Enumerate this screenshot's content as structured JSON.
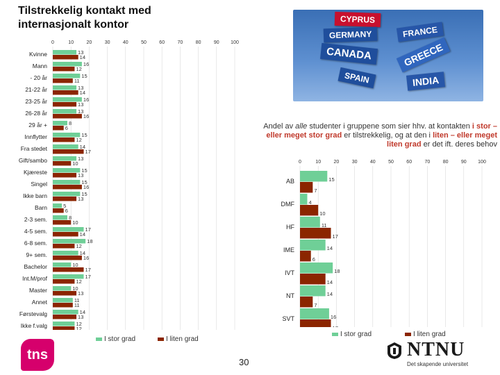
{
  "slide": {
    "title": "Tilstrekkelig kontakt med internasjonalt kontor",
    "page_number": "30",
    "annotation": {
      "part1": "Andel av ",
      "part2": "alle",
      "part3": " studenter i gruppene som sier hhv. at kontakten ",
      "part4": "i stor – eller meget stor grad",
      "part5": " er tilstrekkelig, og at den i ",
      "part6": "liten – eller meget liten grad",
      "part7": " er det ift. deres behov"
    },
    "photo_signs": [
      "CYPRUS",
      "GERMANY",
      "FRANCE",
      "CANADA",
      "GREECE",
      "SPAIN",
      "INDIA"
    ],
    "logos": {
      "tns": "tns",
      "ntnu": "NTNU",
      "ntnu_tagline": "Det skapende universitet"
    }
  },
  "colors": {
    "stor": "#6fcf97",
    "liten": "#8b2500",
    "gridline": "#d9d9d9",
    "highlight": "#c0392b"
  },
  "chart_data": [
    {
      "type": "bar",
      "orientation": "horizontal",
      "title": "",
      "xlim": [
        0,
        100
      ],
      "xticks": [
        0,
        10,
        20,
        30,
        40,
        50,
        60,
        70,
        80,
        90,
        100
      ],
      "categories": [
        "Kvinne",
        "Mann",
        "- 20 år",
        "21-22 år",
        "23-25 år",
        "26-28 år",
        "29 år +",
        "Innflytter",
        "Fra stedet",
        "Gift/sambo",
        "Kjæreste",
        "Singel",
        "Ikke barn",
        "Barn",
        "2-3 sem.",
        "4-5 sem.",
        "6-8 sem.",
        "9+ sem.",
        "Bachelor",
        "Int.M/prof",
        "Master",
        "Annet",
        "Førstevalg",
        "Ikke f.valg"
      ],
      "series": [
        {
          "name": "I stor grad",
          "values": [
            13,
            16,
            15,
            13,
            16,
            13,
            8,
            15,
            14,
            13,
            15,
            15,
            15,
            5,
            8,
            17,
            18,
            14,
            10,
            17,
            10,
            11,
            14,
            12
          ]
        },
        {
          "name": "I liten grad",
          "values": [
            14,
            12,
            11,
            14,
            13,
            16,
            6,
            12,
            17,
            10,
            13,
            16,
            13,
            6,
            10,
            14,
            12,
            16,
            17,
            12,
            13,
            11,
            13,
            12
          ]
        }
      ],
      "legend": [
        "I stor grad",
        "I liten grad"
      ],
      "legend_position": "bottom"
    },
    {
      "type": "bar",
      "orientation": "horizontal",
      "title": "",
      "xlim": [
        0,
        100
      ],
      "xticks": [
        0,
        10,
        20,
        30,
        40,
        50,
        60,
        70,
        80,
        90,
        100
      ],
      "categories": [
        "AB",
        "DMF",
        "HF",
        "IME",
        "IVT",
        "NT",
        "SVT"
      ],
      "series": [
        {
          "name": "I stor grad",
          "values": [
            15,
            4,
            11,
            14,
            18,
            14,
            16
          ]
        },
        {
          "name": "I liten grad",
          "values": [
            7,
            10,
            17,
            6,
            14,
            7,
            17
          ]
        }
      ],
      "legend": [
        "I stor grad",
        "I liten grad"
      ],
      "legend_position": "bottom"
    }
  ]
}
